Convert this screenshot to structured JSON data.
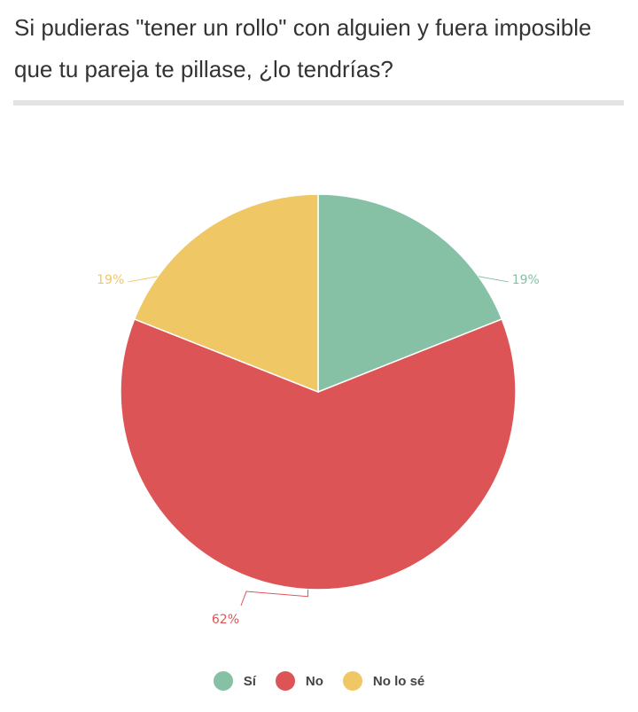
{
  "chart_data": {
    "type": "pie",
    "title": "Si pudieras \"tener un rollo\" con alguien y fuera imposible que tu pareja te pillase, ¿lo tendrías?",
    "categories": [
      "Sí",
      "No",
      "No lo sé"
    ],
    "values": [
      19,
      62,
      19
    ],
    "labels": [
      "19%",
      "62%",
      "19%"
    ],
    "colors": [
      "#86c1a6",
      "#dc5456",
      "#efc764"
    ],
    "legend_position": "bottom"
  }
}
